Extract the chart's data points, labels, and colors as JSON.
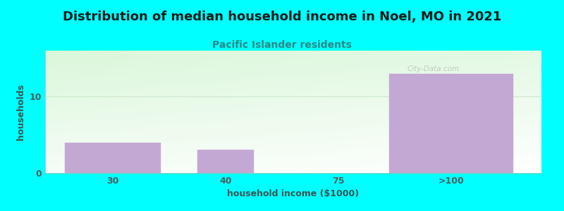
{
  "title": "Distribution of median household income in Noel, MO in 2021",
  "subtitle": "Pacific Islander residents",
  "xlabel": "household income ($1000)",
  "ylabel": "households",
  "background_color": "#00ffff",
  "bar_color": "#c4a8d4",
  "bar_edge_color": "#c4a8d4",
  "title_color": "#1a1a1a",
  "subtitle_color": "#2a8888",
  "axis_label_color": "#3a5555",
  "tick_label_color": "#4a6060",
  "grid_color": "#cce8cc",
  "categories": [
    "30",
    "40",
    "75",
    ">100"
  ],
  "values": [
    4,
    3,
    0,
    13
  ],
  "ylim": [
    0,
    16
  ],
  "yticks": [
    0,
    10
  ],
  "watermark": "City-Data.com",
  "title_fontsize": 13,
  "subtitle_fontsize": 10,
  "label_fontsize": 9,
  "tick_fontsize": 9
}
